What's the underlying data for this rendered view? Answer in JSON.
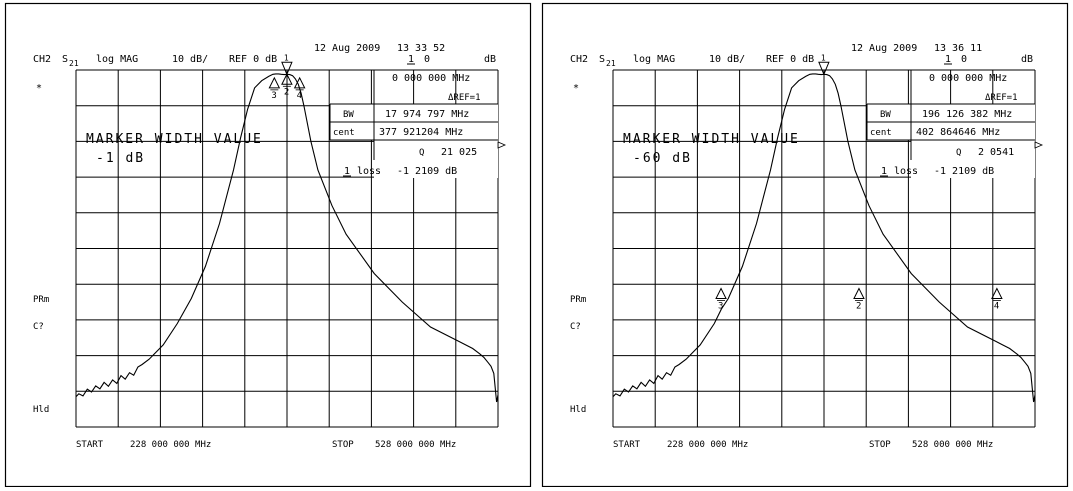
{
  "chart_data": [
    {
      "type": "line",
      "header": {
        "channel": "CH2",
        "param_main": "S",
        "param_sub": "21",
        "format": "log MAG",
        "scale": "10 dB/",
        "ref": "REF 0 dB",
        "date": "12 Aug 2009",
        "time": "13 33 52",
        "marker_ref": "1",
        "marker_val": "0",
        "marker_unit": "dB"
      },
      "readouts": {
        "freq": "0 000 000 MHz",
        "delta_ref": "ΔREF=1",
        "bw_label": "BW",
        "bw_value": "17 974 797 MHz",
        "cent_label": "cent",
        "cent_value": "377 921204 MHz",
        "q_label": "Q",
        "q_value": "21 025",
        "loss_marker": "1",
        "loss_label": "loss",
        "loss_value": "-1 2109 dB"
      },
      "annotations": {
        "title": "MARKER WIDTH VALUE",
        "width_value": "-1 dB",
        "star": "*",
        "prm": "PRm",
        "c2": "C?",
        "hld": "Hld"
      },
      "x_axis": {
        "start_label": "START",
        "start": "228 000 000 MHz",
        "stop_label": "STOP",
        "stop": "528 000 000 MHz"
      },
      "xlim": [
        228,
        528
      ],
      "ylim": [
        -100,
        0
      ],
      "grid": {
        "x_divisions": 10,
        "y_divisions": 10
      },
      "trace": {
        "x": [
          228,
          230,
          233,
          236,
          239,
          242,
          245,
          248,
          251,
          254,
          257,
          260,
          263,
          266,
          269,
          272,
          275,
          280,
          290,
          300,
          310,
          320,
          330,
          340,
          345,
          350,
          355,
          360,
          365,
          368,
          370,
          372,
          374,
          376,
          378,
          380,
          382,
          384,
          386,
          388,
          390,
          395,
          400,
          410,
          420,
          440,
          460,
          480,
          500,
          510,
          515,
          518,
          521,
          523,
          525,
          527,
          528
        ],
        "y": [
          -91.5,
          -90.7,
          -91.3,
          -89.4,
          -90.2,
          -88.5,
          -89.3,
          -87.5,
          -88.6,
          -86.8,
          -87.8,
          -85.6,
          -86.6,
          -84.8,
          -85.5,
          -83.2,
          -82.5,
          -81,
          -77,
          -71,
          -64,
          -55,
          -43,
          -28,
          -19,
          -11,
          -5,
          -3,
          -1.8,
          -1.2,
          -1.1,
          -1.1,
          -1.2,
          -1.3,
          -1.2,
          -1.3,
          -1.6,
          -2.5,
          -4,
          -6.5,
          -10,
          -20,
          -28,
          -38,
          -46,
          -57,
          -65,
          -72,
          -76,
          -78,
          -79.5,
          -80.5,
          -82,
          -83,
          -85,
          -93,
          -91
        ]
      },
      "markers": [
        {
          "id": "1",
          "x": 377.92,
          "y": -1.2,
          "style": "tip"
        },
        {
          "id": "2",
          "x": 377.92,
          "y": -1.2,
          "style": "triangle"
        },
        {
          "id": "3",
          "x": 369.0,
          "y": -2.2,
          "style": "triangle"
        },
        {
          "id": "4",
          "x": 387.0,
          "y": -2.2,
          "style": "triangle"
        }
      ]
    },
    {
      "type": "line",
      "header": {
        "channel": "CH2",
        "param_main": "S",
        "param_sub": "21",
        "format": "log MAG",
        "scale": "10 dB/",
        "ref": "REF 0 dB",
        "date": "12 Aug 2009",
        "time": "13 36 11",
        "marker_ref": "1",
        "marker_val": "0",
        "marker_unit": "dB"
      },
      "readouts": {
        "freq": "0 000 000 MHz",
        "delta_ref": "ΔREF=1",
        "bw_label": "BW",
        "bw_value": "196 126 382 MHz",
        "cent_label": "cent",
        "cent_value": "402 864646 MHz",
        "q_label": "Q",
        "q_value": "2 0541",
        "loss_marker": "1",
        "loss_label": "loss",
        "loss_value": "-1 2109 dB"
      },
      "annotations": {
        "title": "MARKER WIDTH VALUE",
        "width_value": "-60 dB",
        "star": "*",
        "prm": "PRm",
        "c2": "C?",
        "hld": "Hld"
      },
      "x_axis": {
        "start_label": "START",
        "start": "228 000 000 MHz",
        "stop_label": "STOP",
        "stop": "528 000 000 MHz"
      },
      "xlim": [
        228,
        528
      ],
      "ylim": [
        -100,
        0
      ],
      "grid": {
        "x_divisions": 10,
        "y_divisions": 10
      },
      "trace": {
        "x": [
          228,
          230,
          233,
          236,
          239,
          242,
          245,
          248,
          251,
          254,
          257,
          260,
          263,
          266,
          269,
          272,
          275,
          280,
          290,
          300,
          305,
          310,
          320,
          330,
          340,
          345,
          350,
          355,
          360,
          365,
          368,
          370,
          372,
          374,
          376,
          378,
          380,
          382,
          384,
          386,
          388,
          390,
          395,
          400,
          410,
          420,
          440,
          460,
          480,
          500,
          505,
          510,
          515,
          518,
          521,
          523,
          525,
          527,
          528
        ],
        "y": [
          -91.5,
          -90.7,
          -91.3,
          -89.4,
          -90.2,
          -88.5,
          -89.3,
          -87.5,
          -88.6,
          -86.8,
          -87.8,
          -85.6,
          -86.6,
          -84.8,
          -85.5,
          -83.2,
          -82.5,
          -81,
          -77,
          -71,
          -67,
          -64,
          -55,
          -43,
          -28,
          -19,
          -11,
          -5,
          -3,
          -1.8,
          -1.2,
          -1.1,
          -1.1,
          -1.2,
          -1.3,
          -1.2,
          -1.3,
          -1.6,
          -2.5,
          -4,
          -6.5,
          -10,
          -20,
          -28,
          -38,
          -46,
          -57,
          -65,
          -72,
          -76,
          -77,
          -78,
          -79.5,
          -80.5,
          -82,
          -83,
          -85,
          -93,
          -91
        ]
      },
      "markers": [
        {
          "id": "1",
          "x": 377.92,
          "y": -1.2,
          "style": "tip"
        },
        {
          "id": "2",
          "x": 402.86,
          "y": -61.2,
          "style": "triangle"
        },
        {
          "id": "3",
          "x": 304.8,
          "y": -61.2,
          "style": "triangle"
        },
        {
          "id": "4",
          "x": 500.9,
          "y": -61.2,
          "style": "triangle"
        }
      ]
    }
  ]
}
